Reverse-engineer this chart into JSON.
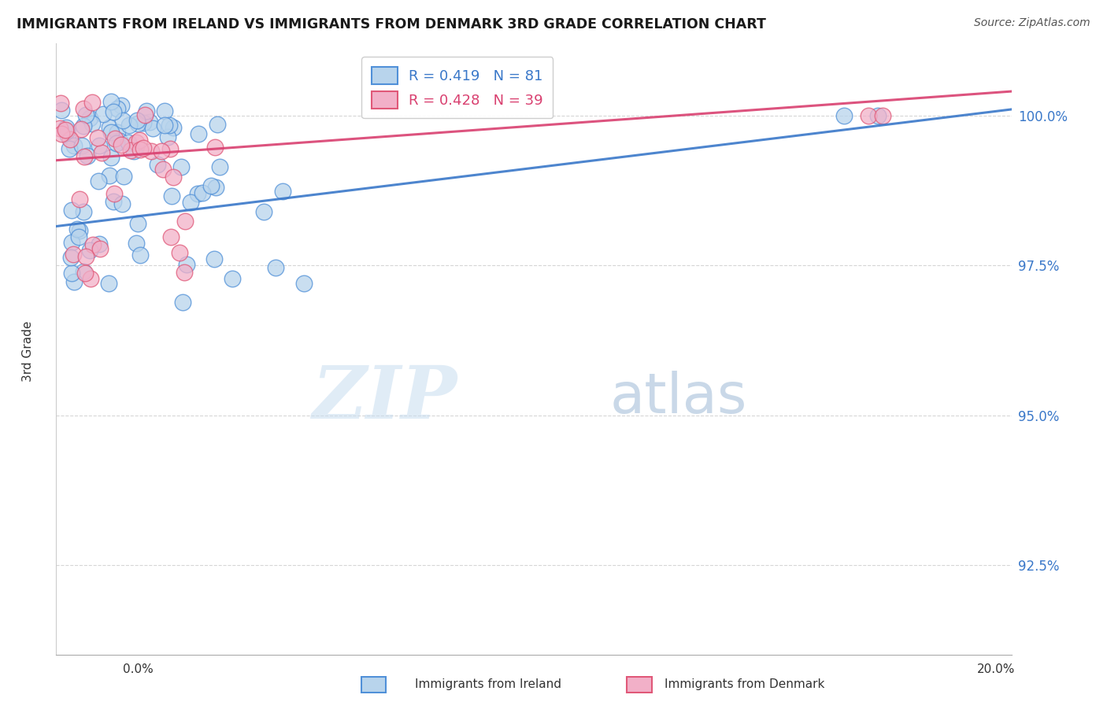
{
  "title": "IMMIGRANTS FROM IRELAND VS IMMIGRANTS FROM DENMARK 3RD GRADE CORRELATION CHART",
  "source": "Source: ZipAtlas.com",
  "ylabel": "3rd Grade",
  "yticks": [
    92.5,
    95.0,
    97.5,
    100.0
  ],
  "ytick_labels": [
    "92.5%",
    "95.0%",
    "97.5%",
    "100.0%"
  ],
  "xmin": 0.0,
  "xmax": 20.0,
  "ymin": 91.0,
  "ymax": 101.2,
  "legend_ireland": "R = 0.419   N = 81",
  "legend_denmark": "R = 0.428   N = 39",
  "ireland_color": "#b8d4ec",
  "denmark_color": "#f2b0c8",
  "ireland_line_color": "#3a78c9",
  "denmark_line_color": "#d94070",
  "ireland_edge_color": "#5090d8",
  "denmark_edge_color": "#e05878",
  "watermark_zip": "ZIP",
  "watermark_atlas": "atlas",
  "bottom_legend_ireland": "Immigrants from Ireland",
  "bottom_legend_denmark": "Immigrants from Denmark",
  "ireland_trend_x0": 0.0,
  "ireland_trend_y0": 98.15,
  "ireland_trend_x1": 20.0,
  "ireland_trend_y1": 100.1,
  "denmark_trend_x0": 0.0,
  "denmark_trend_y0": 99.25,
  "denmark_trend_x1": 20.0,
  "denmark_trend_y1": 100.4
}
